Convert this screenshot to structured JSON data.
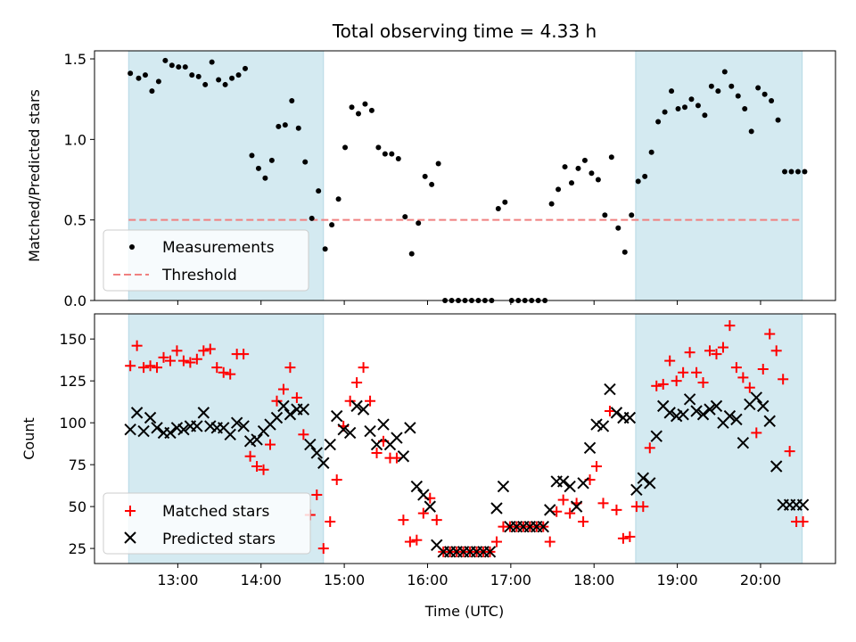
{
  "figure_title": "Total observing time = 4.33 h",
  "chart_data": [
    {
      "type": "scatter",
      "ylabel": "Matched/Predicted stars",
      "xlim": [
        12.0,
        20.9
      ],
      "ylim": [
        0,
        1.55
      ],
      "yticks": [
        "0.0",
        "0.5",
        "1.0",
        "1.5"
      ],
      "shaded_x_ranges": [
        [
          12.41,
          14.75
        ],
        [
          18.5,
          20.5
        ]
      ],
      "shade_color": "#d4eaf1",
      "legend_position": "lower-left",
      "legend": [
        "Measurements",
        "Threshold"
      ],
      "threshold": {
        "name": "Threshold",
        "y": 0.5,
        "x_range": [
          12.41,
          20.5
        ],
        "color": "#f08080",
        "style": "dashed"
      },
      "series": [
        {
          "name": "Measurements",
          "color": "#000000",
          "marker": "dot",
          "x": [
            12.43,
            12.53,
            12.61,
            12.69,
            12.77,
            12.85,
            12.93,
            13.01,
            13.09,
            13.17,
            13.25,
            13.33,
            13.41,
            13.49,
            13.57,
            13.65,
            13.73,
            13.81,
            13.89,
            13.97,
            14.05,
            14.13,
            14.21,
            14.29,
            14.37,
            14.45,
            14.53,
            14.61,
            14.69,
            14.77,
            14.85,
            14.93,
            15.01,
            15.09,
            15.17,
            15.25,
            15.33,
            15.41,
            15.49,
            15.57,
            15.65,
            15.73,
            15.81,
            15.89,
            15.97,
            16.05,
            16.13,
            16.21,
            16.29,
            16.37,
            16.45,
            16.53,
            16.61,
            16.69,
            16.77,
            16.85,
            16.93,
            17.01,
            17.09,
            17.17,
            17.25,
            17.33,
            17.41,
            17.49,
            17.57,
            17.65,
            17.73,
            17.81,
            17.89,
            17.97,
            18.05,
            18.13,
            18.21,
            18.29,
            18.37,
            18.45,
            18.53,
            18.61,
            18.69,
            18.77,
            18.85,
            18.93,
            19.01,
            19.09,
            19.17,
            19.25,
            19.33,
            19.41,
            19.49,
            19.57,
            19.65,
            19.73,
            19.81,
            19.89,
            19.97,
            20.05,
            20.13,
            20.21,
            20.29,
            20.37,
            20.45,
            20.53
          ],
          "y": [
            1.41,
            1.38,
            1.4,
            1.3,
            1.36,
            1.49,
            1.46,
            1.45,
            1.45,
            1.4,
            1.39,
            1.34,
            1.48,
            1.37,
            1.34,
            1.38,
            1.4,
            1.44,
            0.9,
            0.82,
            0.76,
            0.87,
            1.08,
            1.09,
            1.24,
            1.07,
            0.86,
            0.51,
            0.68,
            0.32,
            0.47,
            0.63,
            0.95,
            1.2,
            1.16,
            1.22,
            1.18,
            0.95,
            0.91,
            0.91,
            0.88,
            0.52,
            0.29,
            0.48,
            0.77,
            0.72,
            0.85,
            0.0,
            0.0,
            0.0,
            0.0,
            0.0,
            0.0,
            0.0,
            0.0,
            0.57,
            0.61,
            0.0,
            0.0,
            0.0,
            0.0,
            0.0,
            0.0,
            0.6,
            0.69,
            0.83,
            0.73,
            0.82,
            0.87,
            0.79,
            0.75,
            0.53,
            0.89,
            0.45,
            0.3,
            0.53,
            0.74,
            0.77,
            0.92,
            1.11,
            1.17,
            1.3,
            1.19,
            1.2,
            1.25,
            1.21,
            1.15,
            1.33,
            1.3,
            1.42,
            1.33,
            1.27,
            1.19,
            1.05,
            1.32,
            1.28,
            1.24,
            1.12,
            0.8,
            0.8,
            0.8,
            0.8
          ]
        }
      ]
    },
    {
      "type": "scatter",
      "xlabel": "Time (UTC)",
      "ylabel": "Count",
      "xlim": [
        12.0,
        20.9
      ],
      "ylim": [
        16,
        165
      ],
      "xticks": [
        "13:00",
        "14:00",
        "15:00",
        "16:00",
        "17:00",
        "18:00",
        "19:00",
        "20:00"
      ],
      "xtick_values": [
        13,
        14,
        15,
        16,
        17,
        18,
        19,
        20
      ],
      "yticks": [
        "25",
        "50",
        "75",
        "100",
        "125",
        "150"
      ],
      "shaded_x_ranges": [
        [
          12.41,
          14.75
        ],
        [
          18.5,
          20.5
        ]
      ],
      "shade_color": "#d4eaf1",
      "legend_position": "lower-left",
      "legend": [
        "Matched stars",
        "Predicted stars"
      ],
      "series": [
        {
          "name": "Matched stars",
          "color": "#ff0000",
          "marker": "plus",
          "x": [
            12.43,
            12.51,
            12.59,
            12.67,
            12.75,
            12.83,
            12.91,
            12.99,
            13.07,
            13.15,
            13.23,
            13.31,
            13.39,
            13.47,
            13.55,
            13.63,
            13.71,
            13.79,
            13.87,
            13.95,
            14.03,
            14.11,
            14.19,
            14.27,
            14.35,
            14.43,
            14.51,
            14.59,
            14.67,
            14.75,
            14.83,
            14.91,
            14.99,
            15.07,
            15.15,
            15.23,
            15.31,
            15.39,
            15.47,
            15.55,
            15.63,
            15.71,
            15.79,
            15.87,
            15.95,
            16.03,
            16.11,
            16.19,
            16.27,
            16.35,
            16.43,
            16.51,
            16.59,
            16.67,
            16.75,
            16.83,
            16.91,
            16.99,
            17.07,
            17.15,
            17.23,
            17.31,
            17.39,
            17.47,
            17.55,
            17.63,
            17.71,
            17.79,
            17.87,
            17.95,
            18.03,
            18.11,
            18.19,
            18.27,
            18.35,
            18.43,
            18.51,
            18.59,
            18.67,
            18.75,
            18.83,
            18.91,
            18.99,
            19.07,
            19.15,
            19.23,
            19.31,
            19.39,
            19.47,
            19.55,
            19.63,
            19.71,
            19.79,
            19.87,
            19.95,
            20.03,
            20.11,
            20.19,
            20.27,
            20.35,
            20.43,
            20.51
          ],
          "y": [
            134,
            146,
            133,
            134,
            133,
            139,
            137,
            143,
            137,
            136,
            138,
            143,
            144,
            133,
            130,
            129,
            141,
            141,
            80,
            74,
            72,
            87,
            113,
            120,
            133,
            115,
            93,
            45,
            57,
            25,
            41,
            66,
            98,
            113,
            124,
            133,
            113,
            82,
            89,
            79,
            79,
            42,
            29,
            30,
            46,
            55,
            42,
            23,
            23,
            23,
            23,
            23,
            23,
            23,
            23,
            29,
            38,
            38,
            38,
            38,
            38,
            38,
            38,
            29,
            47,
            54,
            46,
            52,
            41,
            66,
            74,
            52,
            107,
            48,
            31,
            32,
            50,
            50,
            85,
            122,
            123,
            137,
            125,
            130,
            142,
            130,
            124,
            143,
            141,
            145,
            158,
            133,
            127,
            121,
            94,
            132,
            153,
            143,
            126,
            83,
            41,
            41
          ]
        },
        {
          "name": "Predicted stars",
          "color": "#000000",
          "marker": "x",
          "x": [
            12.43,
            12.51,
            12.59,
            12.67,
            12.75,
            12.83,
            12.91,
            12.99,
            13.07,
            13.15,
            13.23,
            13.31,
            13.39,
            13.47,
            13.55,
            13.63,
            13.71,
            13.79,
            13.87,
            13.95,
            14.03,
            14.11,
            14.19,
            14.27,
            14.35,
            14.43,
            14.51,
            14.59,
            14.67,
            14.75,
            14.83,
            14.91,
            14.99,
            15.07,
            15.15,
            15.23,
            15.31,
            15.39,
            15.47,
            15.55,
            15.63,
            15.71,
            15.79,
            15.87,
            15.95,
            16.03,
            16.11,
            16.19,
            16.27,
            16.35,
            16.43,
            16.51,
            16.59,
            16.67,
            16.75,
            16.83,
            16.91,
            16.99,
            17.07,
            17.15,
            17.23,
            17.31,
            17.39,
            17.47,
            17.55,
            17.63,
            17.71,
            17.79,
            17.87,
            17.95,
            18.03,
            18.11,
            18.19,
            18.27,
            18.35,
            18.43,
            18.51,
            18.59,
            18.67,
            18.75,
            18.83,
            18.91,
            18.99,
            19.07,
            19.15,
            19.23,
            19.31,
            19.39,
            19.47,
            19.55,
            19.63,
            19.71,
            19.79,
            19.87,
            19.95,
            20.03,
            20.11,
            20.19,
            20.27,
            20.35,
            20.43,
            20.51
          ],
          "y": [
            96,
            106,
            95,
            103,
            97,
            94,
            94,
            97,
            96,
            98,
            98,
            106,
            98,
            97,
            97,
            93,
            100,
            98,
            89,
            90,
            95,
            99,
            103,
            110,
            105,
            108,
            108,
            87,
            82,
            76,
            87,
            104,
            96,
            94,
            110,
            108,
            95,
            87,
            99,
            87,
            91,
            80,
            97,
            62,
            57,
            50,
            27,
            23,
            23,
            23,
            23,
            23,
            23,
            23,
            23,
            49,
            62,
            38,
            38,
            38,
            38,
            38,
            38,
            48,
            65,
            65,
            62,
            50,
            64,
            85,
            99,
            98,
            120,
            106,
            103,
            103,
            60,
            67,
            64,
            92,
            110,
            106,
            104,
            105,
            114,
            107,
            105,
            108,
            110,
            100,
            104,
            102,
            88,
            111,
            115,
            110,
            101,
            74,
            51,
            51,
            51,
            51
          ]
        }
      ]
    }
  ]
}
